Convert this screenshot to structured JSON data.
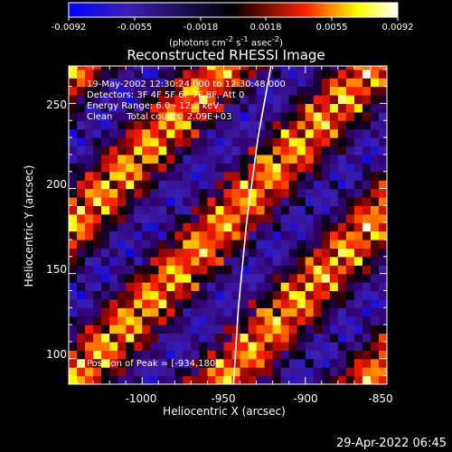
{
  "colorbar": {
    "ticks": [
      "-0.0092",
      "-0.0055",
      "-0.0018",
      "0.0018",
      "0.0055",
      "0.0092"
    ],
    "units_html": "(photons cm<sup>-2</sup> s<sup>-1</sup> asec<sup>-2</sup>)",
    "colors": [
      "#0000ff",
      "#000000",
      "#ff0000",
      "#ffff00",
      "#ffffff"
    ]
  },
  "info": {
    "line1": "19-May-2002 12:30:24.000 to 12:30:48.000",
    "line2": "Detectors: 3F 4F 5F 6F 7F 8F, Att 0",
    "line3": "Energy Range: 6.0 - 12.0 keV",
    "line4": "Clean     Total counts: 2.09E+03",
    "peak": "Position of Peak = [-934,180]"
  },
  "timestamp": "29-Apr-2022 06:45",
  "chart_data": {
    "type": "heatmap",
    "title": "Reconstructed RHESSI Image",
    "xlabel": "Heliocentric X (arcsec)",
    "ylabel": "Heliocentric Y (arcsec)",
    "xlim": [
      -1045,
      -850
    ],
    "ylim": [
      85,
      272
    ],
    "xticks": [
      -1000,
      -950,
      -900,
      -850
    ],
    "yticks": [
      100,
      150,
      200,
      250
    ],
    "xtick_labels": [
      "-1000",
      "-950",
      "-900",
      "-850"
    ],
    "ytick_labels": [
      "100",
      "150",
      "200",
      "250"
    ],
    "zlim": [
      -0.0092,
      0.0092
    ],
    "peak_position": [
      -934,
      180
    ],
    "limb_curve": [
      [
        -944,
        85
      ],
      [
        -941,
        130
      ],
      [
        -936,
        180
      ],
      [
        -929,
        230
      ],
      [
        -921,
        272
      ]
    ]
  }
}
